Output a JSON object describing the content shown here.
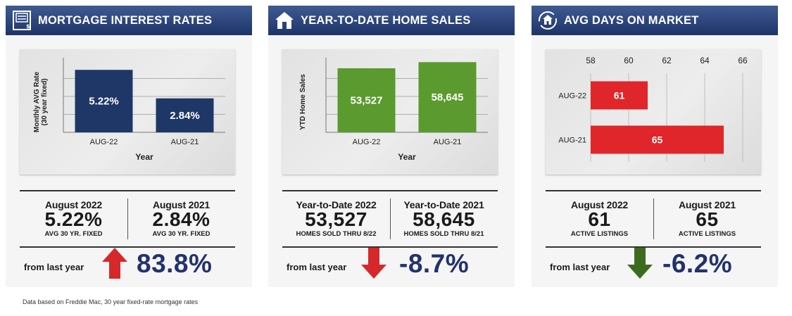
{
  "panels": [
    {
      "title": "MORTGAGE INTEREST RATES",
      "icon": "document-icon",
      "stats": [
        {
          "label": "August 2022",
          "value": "5.22%",
          "sub": "AVG 30 YR. FIXED"
        },
        {
          "label": "August 2021",
          "value": "2.84%",
          "sub": "AVG 30 YR. FIXED"
        }
      ],
      "from_text": "from last year",
      "change": "83.8%",
      "direction": "up",
      "arrow_color": "#d6282b"
    },
    {
      "title": "YEAR-TO-DATE HOME SALES",
      "icon": "house-icon",
      "stats": [
        {
          "label": "Year-to-Date 2022",
          "value": "53,527",
          "sub": "HOMES SOLD THRU 8/22"
        },
        {
          "label": "Year-to-Date 2021",
          "value": "58,645",
          "sub": "HOMES SOLD THRU 8/21"
        }
      ],
      "from_text": "from last year",
      "change": "-8.7%",
      "direction": "down",
      "arrow_color": "#d6282b"
    },
    {
      "title": "AVG DAYS ON MARKET",
      "icon": "house-arrows-icon",
      "stats": [
        {
          "label": "August 2022",
          "value": "61",
          "sub": "ACTIVE LISTINGS"
        },
        {
          "label": "August 2021",
          "value": "65",
          "sub": "ACTIVE LISTINGS"
        }
      ],
      "from_text": "from last year",
      "change": "-6.2%",
      "direction": "down",
      "arrow_color": "#3d6b1e"
    }
  ],
  "footnote": "Data based on Freddie Mac, 30 year fixed-rate mortgage rates",
  "chart_data": [
    {
      "type": "bar",
      "orientation": "vertical",
      "categories": [
        "AUG-22",
        "AUG-21"
      ],
      "values": [
        5.22,
        2.84
      ],
      "data_labels": [
        "5.22%",
        "2.84%"
      ],
      "xlabel": "Year",
      "ylabel": "Monthly AVG Rate (30 year fixed)",
      "ylim": [
        0,
        6
      ],
      "grid": true,
      "bar_color": "#1f3766"
    },
    {
      "type": "bar",
      "orientation": "vertical",
      "categories": [
        "AUG-22",
        "AUG-21"
      ],
      "values": [
        53527,
        58645
      ],
      "data_labels": [
        "53,527",
        "58,645"
      ],
      "xlabel": "Year",
      "ylabel": "YTD Home Sales",
      "ylim": [
        0,
        60000
      ],
      "grid": true,
      "bar_color": "#5a9a2e"
    },
    {
      "type": "bar",
      "orientation": "horizontal",
      "categories": [
        "AUG-22",
        "AUG-21"
      ],
      "values": [
        61,
        65
      ],
      "data_labels": [
        "61",
        "65"
      ],
      "xlim": [
        58,
        66
      ],
      "xticks": [
        "58",
        "60",
        "62",
        "64",
        "66"
      ],
      "grid": true,
      "bar_color": "#e0262a"
    }
  ]
}
